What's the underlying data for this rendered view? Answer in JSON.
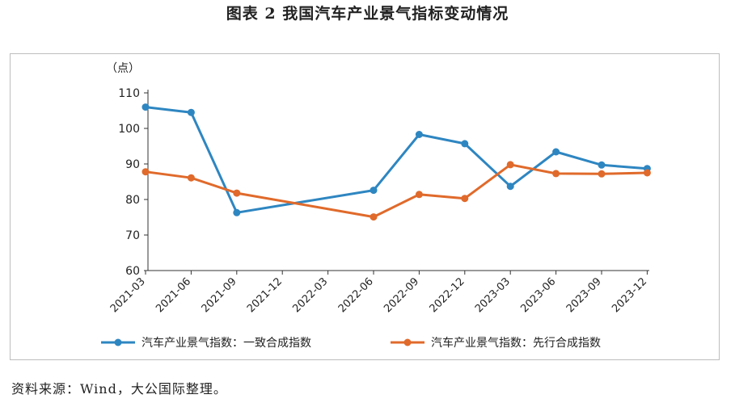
{
  "figure_title": "图表 2 我国汽车产业景气指标变动情况",
  "source_note": "资料来源：Wind，大公国际整理。",
  "chart_data": {
    "type": "line",
    "title": "",
    "unit_label": "（点）",
    "xlabel": "",
    "ylabel": "",
    "ylim": [
      60,
      110
    ],
    "yticks": [
      60,
      70,
      80,
      90,
      100,
      110
    ],
    "grid": false,
    "legend_position": "bottom",
    "categories": [
      "2021-03",
      "2021-06",
      "2021-09",
      "2021-12",
      "2022-03",
      "2022-06",
      "2022-09",
      "2022-12",
      "2023-03",
      "2023-06",
      "2023-09",
      "2023-12"
    ],
    "series": [
      {
        "name": "汽车产业景气指数：一致合成指数",
        "color": "#2E86C1",
        "points": [
          [
            "2021-03",
            106.0
          ],
          [
            "2021-06",
            104.5
          ],
          [
            "2021-09",
            76.3
          ],
          [
            "2022-06",
            82.6
          ],
          [
            "2022-09",
            98.3
          ],
          [
            "2022-12",
            95.7
          ],
          [
            "2023-03",
            83.7
          ],
          [
            "2023-06",
            93.4
          ],
          [
            "2023-09",
            89.7
          ],
          [
            "2023-12",
            88.7
          ]
        ]
      },
      {
        "name": "汽车产业景气指数：先行合成指数",
        "color": "#E06A2B",
        "points": [
          [
            "2021-03",
            87.8
          ],
          [
            "2021-06",
            86.1
          ],
          [
            "2021-09",
            81.8
          ],
          [
            "2022-06",
            75.1
          ],
          [
            "2022-09",
            81.4
          ],
          [
            "2022-12",
            80.3
          ],
          [
            "2023-03",
            89.8
          ],
          [
            "2023-06",
            87.3
          ],
          [
            "2023-09",
            87.2
          ],
          [
            "2023-12",
            87.5
          ]
        ]
      }
    ]
  }
}
